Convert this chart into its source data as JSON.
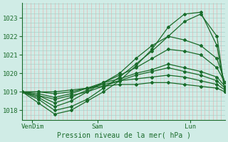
{
  "title": "",
  "xlabel": "Pression niveau de la mer( hPa )",
  "ylabel": "",
  "bg_color": "#d0ece6",
  "grid_color_v": "#e8a8a8",
  "grid_color_h": "#a0ccc4",
  "line_color": "#1a6b2a",
  "ylim": [
    1017.5,
    1023.8
  ],
  "xlim": [
    0,
    100
  ],
  "xtick_positions": [
    5,
    37,
    83
  ],
  "xtick_labels": [
    "VenDim",
    "Sam",
    "Lun"
  ],
  "ytick_positions": [
    1018,
    1019,
    1020,
    1021,
    1022,
    1023
  ],
  "lines": [
    {
      "x": [
        0,
        8,
        16,
        24,
        32,
        40,
        48,
        56,
        64,
        72,
        80,
        88,
        96,
        100
      ],
      "y": [
        1019.0,
        1018.6,
        1018.0,
        1018.2,
        1018.6,
        1019.2,
        1019.8,
        1020.5,
        1021.2,
        1022.0,
        1022.8,
        1023.2,
        1022.0,
        1019.0
      ]
    },
    {
      "x": [
        0,
        8,
        16,
        24,
        32,
        40,
        48,
        56,
        64,
        72,
        80,
        88,
        96,
        100
      ],
      "y": [
        1019.0,
        1018.4,
        1017.8,
        1018.0,
        1018.5,
        1019.0,
        1019.6,
        1020.4,
        1021.3,
        1022.5,
        1023.2,
        1023.3,
        1021.5,
        1019.0
      ]
    },
    {
      "x": [
        0,
        8,
        16,
        24,
        32,
        40,
        48,
        56,
        64,
        72,
        80,
        88,
        96,
        100
      ],
      "y": [
        1019.0,
        1018.7,
        1018.2,
        1018.5,
        1019.0,
        1019.5,
        1020.0,
        1020.8,
        1021.5,
        1022.0,
        1021.8,
        1021.5,
        1020.8,
        1019.5
      ]
    },
    {
      "x": [
        0,
        8,
        16,
        24,
        32,
        40,
        48,
        56,
        64,
        72,
        80,
        88,
        96,
        100
      ],
      "y": [
        1019.0,
        1018.8,
        1018.4,
        1018.7,
        1019.1,
        1019.5,
        1019.9,
        1020.3,
        1020.8,
        1021.3,
        1021.2,
        1021.0,
        1020.3,
        1019.5
      ]
    },
    {
      "x": [
        0,
        8,
        16,
        24,
        32,
        40,
        48,
        56,
        64,
        72,
        80,
        88,
        96,
        100
      ],
      "y": [
        1019.0,
        1018.9,
        1018.7,
        1018.9,
        1019.2,
        1019.5,
        1019.7,
        1020.0,
        1020.2,
        1020.5,
        1020.3,
        1020.1,
        1019.8,
        1019.3
      ]
    },
    {
      "x": [
        0,
        8,
        16,
        24,
        32,
        40,
        48,
        56,
        64,
        72,
        80,
        88,
        96,
        100
      ],
      "y": [
        1019.0,
        1019.0,
        1018.9,
        1019.0,
        1019.2,
        1019.4,
        1019.6,
        1019.7,
        1019.8,
        1019.9,
        1019.8,
        1019.6,
        1019.4,
        1019.1
      ]
    },
    {
      "x": [
        0,
        8,
        16,
        24,
        32,
        40,
        48,
        56,
        64,
        72,
        80,
        88,
        96,
        100
      ],
      "y": [
        1019.0,
        1019.0,
        1019.0,
        1019.1,
        1019.2,
        1019.3,
        1019.4,
        1019.4,
        1019.5,
        1019.5,
        1019.4,
        1019.3,
        1019.2,
        1019.0
      ]
    },
    {
      "x": [
        0,
        8,
        16,
        24,
        32,
        40,
        48,
        56,
        64,
        72,
        80,
        88,
        96,
        100
      ],
      "y": [
        1019.0,
        1018.8,
        1018.6,
        1018.8,
        1019.0,
        1019.3,
        1019.6,
        1019.9,
        1020.1,
        1020.3,
        1020.1,
        1019.9,
        1019.6,
        1019.2
      ]
    }
  ],
  "marker": "D",
  "marker_size": 2,
  "line_width": 0.9
}
